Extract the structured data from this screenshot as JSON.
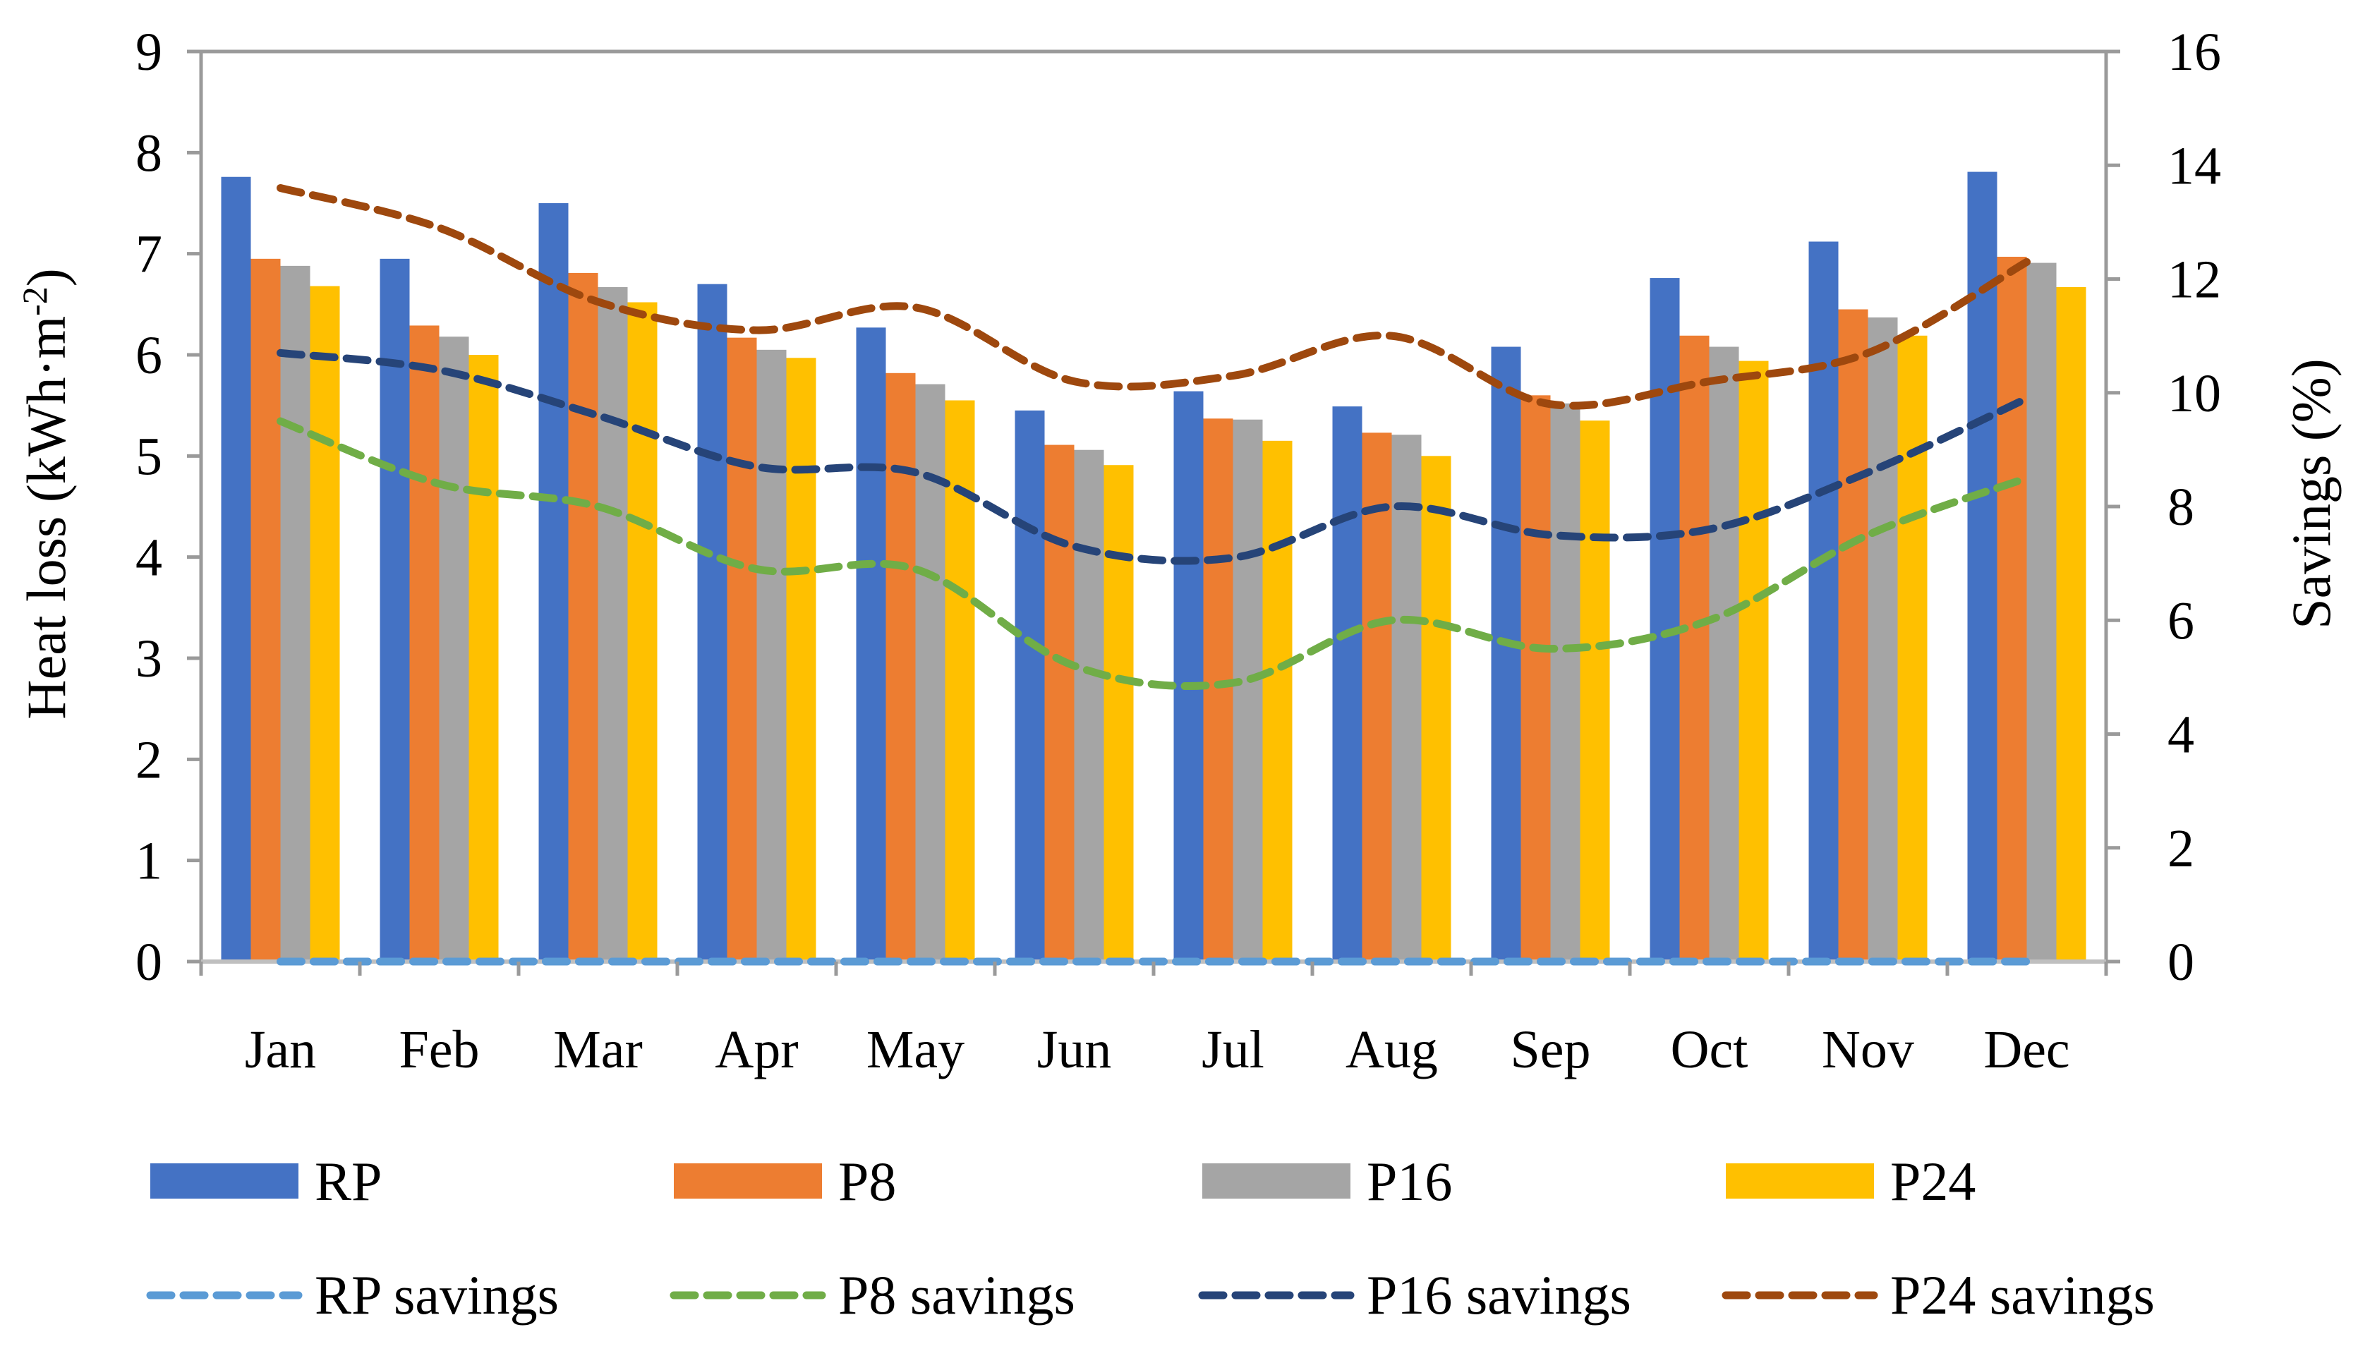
{
  "chart_data": {
    "type": "bar",
    "title": "",
    "categories": [
      "Jan",
      "Feb",
      "Mar",
      "Apr",
      "May",
      "Jun",
      "Jul",
      "Aug",
      "Sep",
      "Oct",
      "Nov",
      "Dec"
    ],
    "ylabel_parts": {
      "main": "Heat loss (kWh·m",
      "superscript": "-2",
      "close": ")"
    },
    "y2label": "Savings (%)",
    "ylim": [
      0,
      9
    ],
    "y2lim": [
      0,
      16
    ],
    "yticks": [
      "0",
      "1",
      "2",
      "3",
      "4",
      "5",
      "6",
      "7",
      "8",
      "9"
    ],
    "y2ticks": [
      "0",
      "2",
      "4",
      "6",
      "8",
      "10",
      "12",
      "14",
      "16"
    ],
    "legend_position": "bottom",
    "bar_series": [
      {
        "name": "RP",
        "color": "#4472C4",
        "values": [
          7.76,
          6.95,
          7.5,
          6.7,
          6.27,
          5.45,
          5.64,
          5.49,
          6.08,
          6.76,
          7.12,
          7.81
        ]
      },
      {
        "name": "P8",
        "color": "#ED7D31",
        "values": [
          6.95,
          6.29,
          6.81,
          6.17,
          5.82,
          5.11,
          5.37,
          5.23,
          5.6,
          6.19,
          6.45,
          6.97
        ]
      },
      {
        "name": "P16",
        "color": "#A5A5A5",
        "values": [
          6.88,
          6.18,
          6.67,
          6.05,
          5.71,
          5.06,
          5.36,
          5.21,
          5.52,
          6.08,
          6.37,
          6.91
        ]
      },
      {
        "name": "P24",
        "color": "#FFC000",
        "values": [
          6.68,
          6.0,
          6.52,
          5.97,
          5.55,
          4.91,
          5.15,
          5.0,
          5.35,
          5.94,
          6.19,
          6.67
        ]
      }
    ],
    "line_series": [
      {
        "name": "RP savings",
        "color": "#5B9BD5",
        "values": [
          0,
          0,
          0,
          0,
          0,
          0,
          0,
          0,
          0,
          0,
          0,
          0
        ]
      },
      {
        "name": "P8 savings",
        "color": "#70AD47",
        "values": [
          9.5,
          8.4,
          8.0,
          6.9,
          6.9,
          5.2,
          4.9,
          6.0,
          5.5,
          6.0,
          7.5,
          8.5
        ]
      },
      {
        "name": "P16 savings",
        "color": "#264478",
        "values": [
          10.7,
          10.4,
          9.6,
          8.7,
          8.6,
          7.3,
          7.1,
          8.0,
          7.5,
          7.6,
          8.6,
          9.9
        ]
      },
      {
        "name": "P24 savings",
        "color": "#9E480E",
        "values": [
          13.6,
          12.9,
          11.6,
          11.1,
          11.5,
          10.2,
          10.3,
          11.0,
          9.8,
          10.2,
          10.7,
          12.3
        ]
      }
    ]
  }
}
